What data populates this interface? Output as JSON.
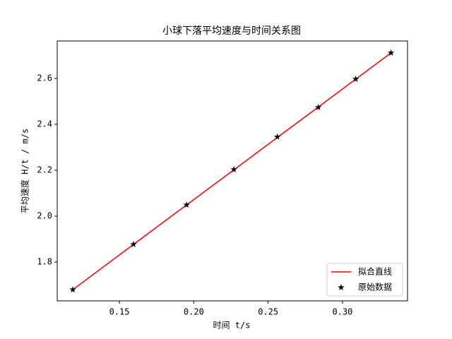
{
  "chart_data": {
    "type": "line",
    "title": "小球下落平均速度与时间关系图",
    "x_label": "时间 t/s",
    "y_label": "平均速度 H/t / m/s",
    "x": [
      0.1187,
      0.1595,
      0.1952,
      0.227,
      0.2562,
      0.2837,
      0.3089,
      0.3326
    ],
    "series": [
      {
        "name": "拟合直线",
        "color": "#ff0000",
        "type": "line",
        "values": [
          1.68,
          1.877,
          2.049,
          2.202,
          2.343,
          2.475,
          2.597,
          2.711
        ]
      },
      {
        "name": "原始数据",
        "color": "#000000",
        "type": "scatter",
        "marker": "star",
        "values": [
          1.68,
          1.877,
          2.049,
          2.203,
          2.345,
          2.474,
          2.597,
          2.711
        ]
      }
    ],
    "xlim": [
      0.1082,
      0.3437
    ],
    "ylim": [
      1.631,
      2.763
    ],
    "xticks": [
      0.15,
      {
        "value": 0.2,
        "label": "0.20"
      },
      0.25,
      {
        "value": 0.3,
        "label": "0.30"
      }
    ],
    "yticks": [
      1.8,
      {
        "value": 2.0,
        "label": "2.0"
      },
      2.2,
      2.4,
      2.6
    ],
    "legend": "lower right"
  }
}
